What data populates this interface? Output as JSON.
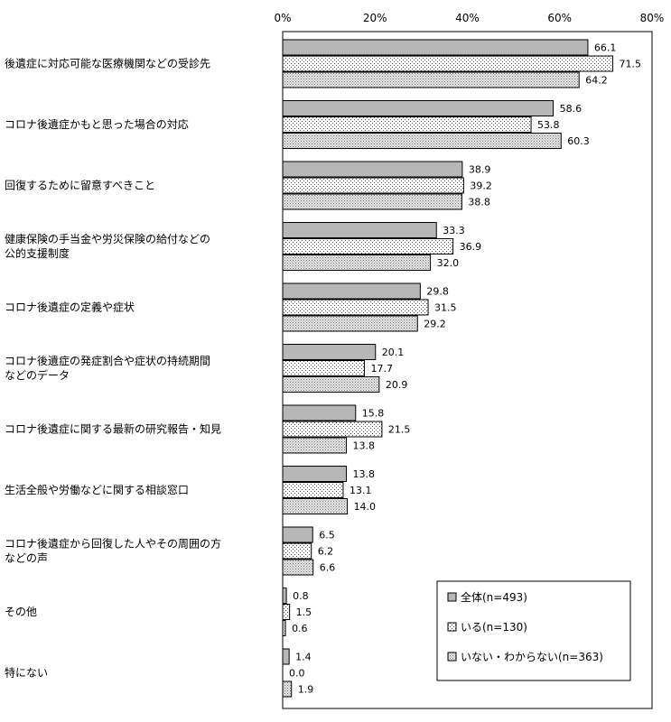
{
  "chart_data": {
    "type": "bar",
    "orientation": "horizontal",
    "xlim": [
      0,
      80
    ],
    "ticks": [
      "0%",
      "20%",
      "40%",
      "60%",
      "80%"
    ],
    "tick_values": [
      0,
      20,
      40,
      60,
      80
    ],
    "legend_position": "bottom-right",
    "categories": [
      "後遺症に対応可能な医療機関などの受診先",
      "コロナ後遺症かもと思った場合の対応",
      "回復するために留意すべきこと",
      "健康保険の手当金や労災保険の給付などの\n公的支援制度",
      "コロナ後遺症の定義や症状",
      "コロナ後遺症の発症割合や症状の持続期間\nなどのデータ",
      "コロナ後遺症に関する最新の研究報告・知見",
      "生活全般や労働などに関する相談窓口",
      "コロナ後遺症から回復した人やその周囲の方\nなどの声",
      "その他",
      "特にない"
    ],
    "series": [
      {
        "name": "全体(n=493)",
        "pattern": "solid-gray",
        "fill": "#b7b7b7",
        "values": [
          66.1,
          58.6,
          38.9,
          33.3,
          29.8,
          20.1,
          15.8,
          13.8,
          6.5,
          0.8,
          1.4
        ],
        "labels": [
          "66.1",
          "58.6",
          "38.9",
          "33.3",
          "29.8",
          "20.1",
          "15.8",
          "13.8",
          "6.5",
          "0.8",
          "1.4"
        ]
      },
      {
        "name": "いる(n=130)",
        "pattern": "sparse-dots",
        "fill": "#ffffff",
        "values": [
          71.5,
          53.8,
          39.2,
          36.9,
          31.5,
          17.7,
          21.5,
          13.1,
          6.2,
          1.5,
          0.0
        ],
        "labels": [
          "71.5",
          "53.8",
          "39.2",
          "36.9",
          "31.5",
          "17.7",
          "21.5",
          "13.1",
          "6.2",
          "1.5",
          "0.0"
        ]
      },
      {
        "name": "いない・わからない(n=363)",
        "pattern": "dense-dots",
        "fill": "#d9d9d9",
        "values": [
          64.2,
          60.3,
          38.8,
          32.0,
          29.2,
          20.9,
          13.8,
          14.0,
          6.6,
          0.6,
          1.9
        ],
        "labels": [
          "64.2",
          "60.3",
          "38.8",
          "32.0",
          "29.2",
          "20.9",
          "13.8",
          "14.0",
          "6.6",
          "0.6",
          "1.9"
        ]
      }
    ]
  }
}
